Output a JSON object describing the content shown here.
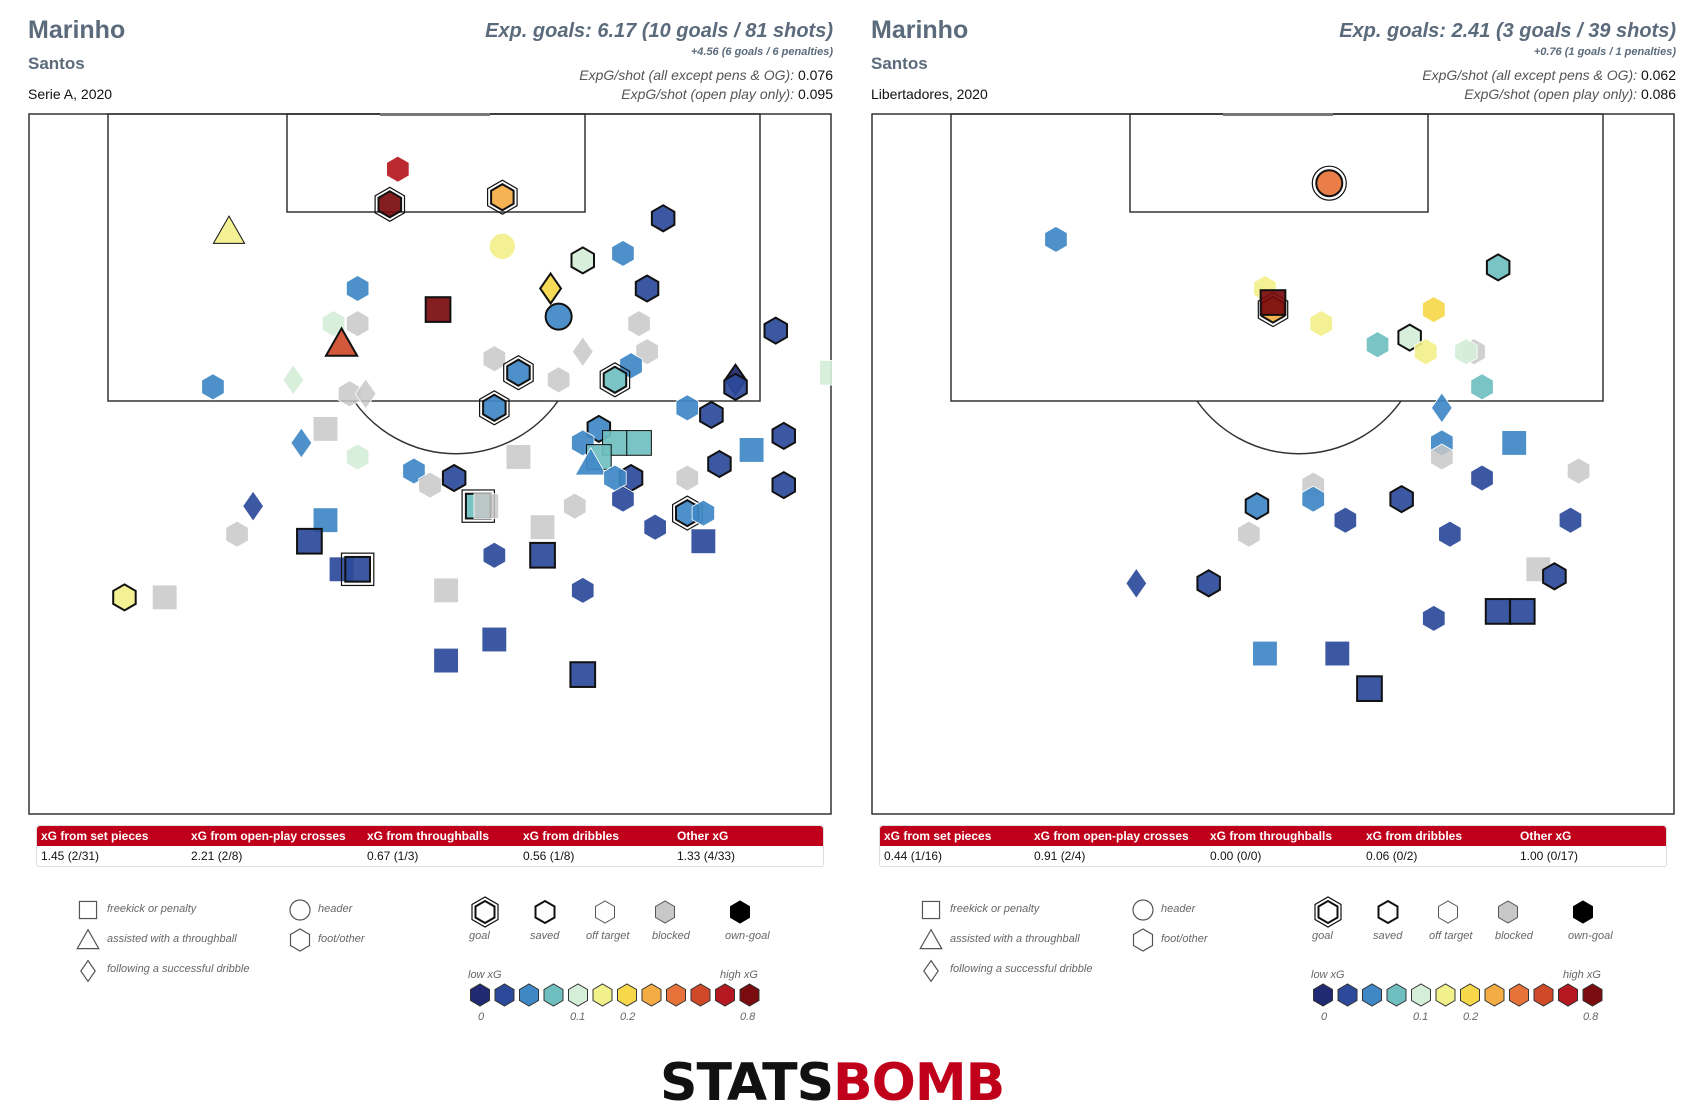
{
  "colors": {
    "text_main": "#5b6b7c",
    "banner_red": "#c0001a",
    "scale": [
      "#1f2a73",
      "#2d4a9a",
      "#3f88c5",
      "#6fbfc0",
      "#d4eed8",
      "#f2f08a",
      "#f6d84a",
      "#f4ad45",
      "#e8733a",
      "#d04a2a",
      "#b51820",
      "#7a0b0e"
    ],
    "grey": "#c8c8c8"
  },
  "logo": {
    "part1": "STATS",
    "part2": "BOMB",
    "color1": "#111111",
    "color2": "#c0001a"
  },
  "panels": [
    {
      "player": "Marinho",
      "team": "Santos",
      "competition": "Serie A, 2020",
      "expg_summary": "Exp. goals: 6.17 (10 goals / 81 shots)",
      "pens_summary": "+4.56 (6 goals / 6 penalties)",
      "expg_per_shot_label": "ExpG/shot (all except pens & OG):",
      "expg_per_shot_value": "0.076",
      "expg_open_label": "ExpG/shot (open play only):",
      "expg_open_value": "0.095",
      "stats": {
        "headers": [
          "xG from set pieces",
          "xG from open-play crosses",
          "xG from throughballs",
          "xG from dribbles",
          "Other xG"
        ],
        "values": [
          "1.45 (2/31)",
          "2.21 (2/8)",
          "0.67 (1/3)",
          "0.56 (1/8)",
          "1.33 (4/33)"
        ]
      }
    },
    {
      "player": "Marinho",
      "team": "Santos",
      "competition": "Libertadores, 2020",
      "expg_summary": "Exp. goals: 2.41 (3 goals / 39 shots)",
      "pens_summary": "+0.76 (1 goals / 1 penalties)",
      "expg_per_shot_label": "ExpG/shot (all except pens & OG):",
      "expg_per_shot_value": "0.062",
      "expg_open_label": "ExpG/shot (open play only):",
      "expg_open_value": "0.086",
      "stats": {
        "headers": [
          "xG from set pieces",
          "xG from open-play crosses",
          "xG from throughballs",
          "xG from dribbles",
          "Other xG"
        ],
        "values": [
          "0.44 (1/16)",
          "0.91 (2/4)",
          "0.00 (0/0)",
          "0.06 (0/2)",
          "1.00 (0/17)"
        ]
      }
    }
  ],
  "legend": {
    "types": [
      "freekick or penalty",
      "assisted with a throughball",
      "following a successful dribble"
    ],
    "bodyparts": [
      "header",
      "foot/other"
    ],
    "outcomes": [
      "goal",
      "saved",
      "off target",
      "blocked",
      "own-goal"
    ],
    "low_label": "low xG",
    "high_label": "high xG",
    "ticks": [
      "0",
      "0.1",
      "0.2",
      "0.8"
    ]
  },
  "chart_data": [
    {
      "type": "scatter",
      "title": "Marinho — Santos, Serie A, 2020",
      "x_units": "pitch width 0-100 (left to right)",
      "y_units": "distance from goal line 0-100",
      "shots": [
        {
          "x": 46,
          "y": 8,
          "s": "hex",
          "c": 10,
          "o": "none"
        },
        {
          "x": 45,
          "y": 13,
          "s": "hex",
          "c": 11,
          "o": "goal"
        },
        {
          "x": 59,
          "y": 12,
          "s": "hex",
          "c": 7,
          "o": "goal"
        },
        {
          "x": 25,
          "y": 17,
          "s": "tri",
          "c": 5,
          "o": "off"
        },
        {
          "x": 59,
          "y": 19,
          "s": "circle",
          "c": 5,
          "o": "none"
        },
        {
          "x": 79,
          "y": 15,
          "s": "hex",
          "c": 1,
          "o": "saved"
        },
        {
          "x": 69,
          "y": 21,
          "s": "hex",
          "c": 4,
          "o": "saved"
        },
        {
          "x": 74,
          "y": 20,
          "s": "hex",
          "c": 2,
          "o": "none"
        },
        {
          "x": 41,
          "y": 25,
          "s": "hex",
          "c": 2,
          "o": "none"
        },
        {
          "x": 65,
          "y": 25,
          "s": "dia",
          "c": 6,
          "o": "saved"
        },
        {
          "x": 51,
          "y": 28,
          "s": "sq",
          "c": 11,
          "o": "saved"
        },
        {
          "x": 77,
          "y": 25,
          "s": "hex",
          "c": 1,
          "o": "saved"
        },
        {
          "x": 66,
          "y": 29,
          "s": "circle",
          "c": 2,
          "o": "saved"
        },
        {
          "x": 38,
          "y": 30,
          "s": "hex",
          "c": 4,
          "o": "none"
        },
        {
          "x": 41,
          "y": 30,
          "s": "hex",
          "c": 12,
          "o": "none"
        },
        {
          "x": 39,
          "y": 33,
          "s": "tri",
          "c": 9,
          "o": "saved"
        },
        {
          "x": 76,
          "y": 30,
          "s": "hex",
          "c": 12,
          "o": "none"
        },
        {
          "x": 93,
          "y": 31,
          "s": "hex",
          "c": 1,
          "o": "saved"
        },
        {
          "x": 58,
          "y": 35,
          "s": "hex",
          "c": 12,
          "o": "none"
        },
        {
          "x": 69,
          "y": 34,
          "s": "dia",
          "c": 12,
          "o": "none"
        },
        {
          "x": 77,
          "y": 34,
          "s": "hex",
          "c": 12,
          "o": "none"
        },
        {
          "x": 75,
          "y": 36,
          "s": "hex",
          "c": 2,
          "o": "none"
        },
        {
          "x": 61,
          "y": 37,
          "s": "hex",
          "c": 2,
          "o": "goal"
        },
        {
          "x": 73,
          "y": 38,
          "s": "hex",
          "c": 3,
          "o": "goal"
        },
        {
          "x": 66,
          "y": 38,
          "s": "hex",
          "c": 12,
          "o": "none"
        },
        {
          "x": 23,
          "y": 39,
          "s": "hex",
          "c": 2,
          "o": "none"
        },
        {
          "x": 33,
          "y": 38,
          "s": "dia",
          "c": 4,
          "o": "none"
        },
        {
          "x": 40,
          "y": 40,
          "s": "hex",
          "c": 12,
          "o": "none"
        },
        {
          "x": 42,
          "y": 40,
          "s": "dia",
          "c": 12,
          "o": "none"
        },
        {
          "x": 88,
          "y": 38,
          "s": "dia",
          "c": 0,
          "o": "saved"
        },
        {
          "x": 88,
          "y": 39,
          "s": "hex",
          "c": 1,
          "o": "saved"
        },
        {
          "x": 58,
          "y": 42,
          "s": "hex",
          "c": 2,
          "o": "goal"
        },
        {
          "x": 82,
          "y": 42,
          "s": "hex",
          "c": 2,
          "o": "none"
        },
        {
          "x": 85,
          "y": 43,
          "s": "hex",
          "c": 1,
          "o": "saved"
        },
        {
          "x": 100,
          "y": 37,
          "s": "sq",
          "c": 4,
          "o": "none"
        },
        {
          "x": 37,
          "y": 45,
          "s": "sq",
          "c": 12,
          "o": "none"
        },
        {
          "x": 34,
          "y": 47,
          "s": "dia",
          "c": 2,
          "o": "none"
        },
        {
          "x": 71,
          "y": 45,
          "s": "hex",
          "c": 2,
          "o": "saved"
        },
        {
          "x": 73,
          "y": 47,
          "s": "sq",
          "c": 3,
          "o": "off"
        },
        {
          "x": 76,
          "y": 47,
          "s": "sq",
          "c": 3,
          "o": "off"
        },
        {
          "x": 69,
          "y": 47,
          "s": "hex",
          "c": 2,
          "o": "none"
        },
        {
          "x": 71,
          "y": 49,
          "s": "sq",
          "c": 3,
          "o": "off"
        },
        {
          "x": 70,
          "y": 50,
          "s": "tri",
          "c": 2,
          "o": "none"
        },
        {
          "x": 94,
          "y": 46,
          "s": "hex",
          "c": 1,
          "o": "saved"
        },
        {
          "x": 90,
          "y": 48,
          "s": "sq",
          "c": 2,
          "o": "none"
        },
        {
          "x": 41,
          "y": 49,
          "s": "hex",
          "c": 4,
          "o": "none"
        },
        {
          "x": 61,
          "y": 49,
          "s": "sq",
          "c": 12,
          "o": "none"
        },
        {
          "x": 48,
          "y": 51,
          "s": "hex",
          "c": 2,
          "o": "none"
        },
        {
          "x": 86,
          "y": 50,
          "s": "hex",
          "c": 1,
          "o": "saved"
        },
        {
          "x": 75,
          "y": 52,
          "s": "hex",
          "c": 1,
          "o": "saved"
        },
        {
          "x": 73,
          "y": 52,
          "s": "hex",
          "c": 2,
          "o": "none"
        },
        {
          "x": 82,
          "y": 52,
          "s": "hex",
          "c": 12,
          "o": "none"
        },
        {
          "x": 50,
          "y": 53,
          "s": "hex",
          "c": 12,
          "o": "none"
        },
        {
          "x": 53,
          "y": 52,
          "s": "hex",
          "c": 1,
          "o": "saved"
        },
        {
          "x": 94,
          "y": 53,
          "s": "hex",
          "c": 1,
          "o": "saved"
        },
        {
          "x": 74,
          "y": 55,
          "s": "hex",
          "c": 1,
          "o": "none"
        },
        {
          "x": 28,
          "y": 56,
          "s": "dia",
          "c": 1,
          "o": "none"
        },
        {
          "x": 56,
          "y": 56,
          "s": "sq",
          "c": 3,
          "o": "goal"
        },
        {
          "x": 57,
          "y": 56,
          "s": "sq",
          "c": 12,
          "o": "none"
        },
        {
          "x": 68,
          "y": 56,
          "s": "hex",
          "c": 12,
          "o": "none"
        },
        {
          "x": 82,
          "y": 57,
          "s": "hex",
          "c": 2,
          "o": "goal"
        },
        {
          "x": 84,
          "y": 57,
          "s": "hex",
          "c": 2,
          "o": "none"
        },
        {
          "x": 37,
          "y": 58,
          "s": "sq",
          "c": 2,
          "o": "none"
        },
        {
          "x": 64,
          "y": 59,
          "s": "sq",
          "c": 12,
          "o": "none"
        },
        {
          "x": 78,
          "y": 59,
          "s": "hex",
          "c": 1,
          "o": "none"
        },
        {
          "x": 26,
          "y": 60,
          "s": "hex",
          "c": 12,
          "o": "none"
        },
        {
          "x": 35,
          "y": 61,
          "s": "sq",
          "c": 1,
          "o": "saved"
        },
        {
          "x": 84,
          "y": 61,
          "s": "sq",
          "c": 1,
          "o": "none"
        },
        {
          "x": 58,
          "y": 63,
          "s": "hex",
          "c": 1,
          "o": "none"
        },
        {
          "x": 64,
          "y": 63,
          "s": "sq",
          "c": 1,
          "o": "saved"
        },
        {
          "x": 39,
          "y": 65,
          "s": "sq",
          "c": 1,
          "o": "none"
        },
        {
          "x": 41,
          "y": 65,
          "s": "sq",
          "c": 1,
          "o": "goal"
        },
        {
          "x": 52,
          "y": 68,
          "s": "sq",
          "c": 12,
          "o": "none"
        },
        {
          "x": 69,
          "y": 68,
          "s": "hex",
          "c": 1,
          "o": "none"
        },
        {
          "x": 12,
          "y": 69,
          "s": "hex",
          "c": 5,
          "o": "saved"
        },
        {
          "x": 17,
          "y": 69,
          "s": "sq",
          "c": 12,
          "o": "none"
        },
        {
          "x": 58,
          "y": 75,
          "s": "sq",
          "c": 1,
          "o": "none"
        },
        {
          "x": 52,
          "y": 78,
          "s": "sq",
          "c": 1,
          "o": "none"
        },
        {
          "x": 69,
          "y": 80,
          "s": "sq",
          "c": 1,
          "o": "saved"
        }
      ]
    },
    {
      "type": "scatter",
      "title": "Marinho — Santos, Libertadores, 2020",
      "x_units": "pitch width 0-100 (left to right)",
      "y_units": "distance from goal line 0-100",
      "shots": [
        {
          "x": 57,
          "y": 10,
          "s": "circle",
          "c": 8,
          "o": "goal"
        },
        {
          "x": 23,
          "y": 18,
          "s": "hex",
          "c": 2,
          "o": "none"
        },
        {
          "x": 78,
          "y": 22,
          "s": "hex",
          "c": 3,
          "o": "saved"
        },
        {
          "x": 49,
          "y": 25,
          "s": "hex",
          "c": 5,
          "o": "none"
        },
        {
          "x": 50,
          "y": 28,
          "s": "hex",
          "c": 7,
          "o": "goal"
        },
        {
          "x": 50,
          "y": 27,
          "s": "sq",
          "c": 11,
          "o": "saved"
        },
        {
          "x": 56,
          "y": 30,
          "s": "hex",
          "c": 5,
          "o": "none"
        },
        {
          "x": 70,
          "y": 28,
          "s": "hex",
          "c": 6,
          "o": "none"
        },
        {
          "x": 63,
          "y": 33,
          "s": "hex",
          "c": 3,
          "o": "none"
        },
        {
          "x": 67,
          "y": 32,
          "s": "hex",
          "c": 4,
          "o": "saved"
        },
        {
          "x": 69,
          "y": 34,
          "s": "hex",
          "c": 5,
          "o": "none"
        },
        {
          "x": 75,
          "y": 34,
          "s": "hex",
          "c": 12,
          "o": "none"
        },
        {
          "x": 74,
          "y": 34,
          "s": "hex",
          "c": 4,
          "o": "none"
        },
        {
          "x": 76,
          "y": 39,
          "s": "hex",
          "c": 3,
          "o": "none"
        },
        {
          "x": 71,
          "y": 42,
          "s": "dia",
          "c": 2,
          "o": "none"
        },
        {
          "x": 71,
          "y": 47,
          "s": "hex",
          "c": 2,
          "o": "none"
        },
        {
          "x": 71,
          "y": 49,
          "s": "hex",
          "c": 12,
          "o": "none"
        },
        {
          "x": 80,
          "y": 47,
          "s": "sq",
          "c": 2,
          "o": "none"
        },
        {
          "x": 55,
          "y": 53,
          "s": "hex",
          "c": 12,
          "o": "none"
        },
        {
          "x": 55,
          "y": 55,
          "s": "hex",
          "c": 2,
          "o": "none"
        },
        {
          "x": 76,
          "y": 52,
          "s": "hex",
          "c": 1,
          "o": "none"
        },
        {
          "x": 88,
          "y": 51,
          "s": "hex",
          "c": 12,
          "o": "none"
        },
        {
          "x": 48,
          "y": 56,
          "s": "hex",
          "c": 2,
          "o": "saved"
        },
        {
          "x": 66,
          "y": 55,
          "s": "hex",
          "c": 1,
          "o": "saved"
        },
        {
          "x": 59,
          "y": 58,
          "s": "hex",
          "c": 1,
          "o": "none"
        },
        {
          "x": 47,
          "y": 60,
          "s": "hex",
          "c": 12,
          "o": "none"
        },
        {
          "x": 72,
          "y": 60,
          "s": "hex",
          "c": 1,
          "o": "none"
        },
        {
          "x": 87,
          "y": 58,
          "s": "hex",
          "c": 1,
          "o": "none"
        },
        {
          "x": 33,
          "y": 67,
          "s": "dia",
          "c": 1,
          "o": "none"
        },
        {
          "x": 42,
          "y": 67,
          "s": "hex",
          "c": 1,
          "o": "saved"
        },
        {
          "x": 83,
          "y": 65,
          "s": "sq",
          "c": 12,
          "o": "none"
        },
        {
          "x": 85,
          "y": 66,
          "s": "hex",
          "c": 1,
          "o": "saved"
        },
        {
          "x": 70,
          "y": 72,
          "s": "hex",
          "c": 1,
          "o": "none"
        },
        {
          "x": 78,
          "y": 71,
          "s": "sq",
          "c": 1,
          "o": "saved"
        },
        {
          "x": 81,
          "y": 71,
          "s": "sq",
          "c": 1,
          "o": "saved"
        },
        {
          "x": 49,
          "y": 77,
          "s": "sq",
          "c": 2,
          "o": "none"
        },
        {
          "x": 58,
          "y": 77,
          "s": "sq",
          "c": 1,
          "o": "none"
        },
        {
          "x": 62,
          "y": 82,
          "s": "sq",
          "c": 1,
          "o": "saved"
        }
      ]
    }
  ]
}
